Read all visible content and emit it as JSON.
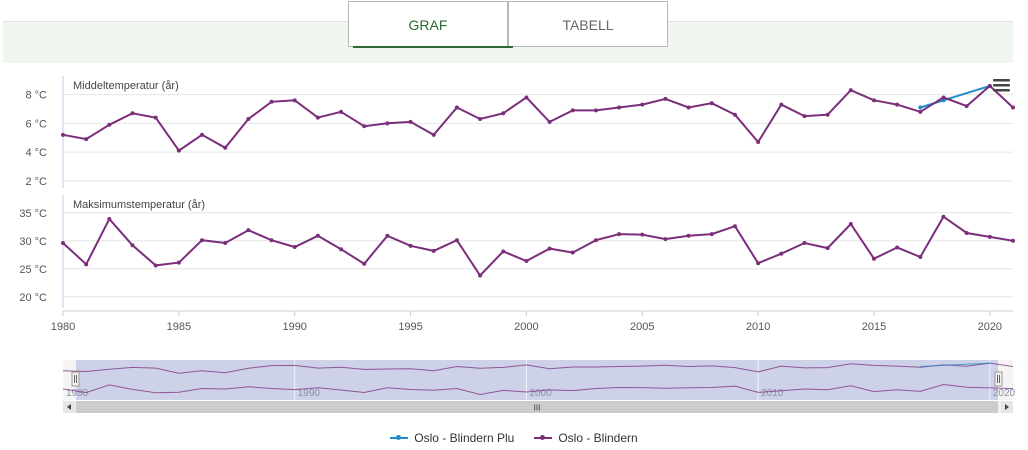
{
  "tabs": {
    "graf": "GRAF",
    "tabell": "TABELL"
  },
  "colors": {
    "blindern": "#7b2e7b",
    "plu": "#1f8dc9",
    "tab_active": "#2e6a33"
  },
  "menu_icon": "hamburger-menu-icon",
  "chart_data": [
    {
      "type": "line",
      "title": "Middeltemperatur (år)",
      "unit": "°C",
      "ylim": [
        1.5,
        9.5
      ],
      "yticks": [
        2,
        4,
        6,
        8
      ],
      "ytick_labels": [
        "2 °C",
        "4 °C",
        "6 °C",
        "8 °C"
      ],
      "series": [
        {
          "name": "Oslo - Blindern",
          "x": [
            1980,
            1981,
            1982,
            1983,
            1984,
            1985,
            1986,
            1987,
            1988,
            1989,
            1990,
            1991,
            1992,
            1993,
            1994,
            1995,
            1996,
            1997,
            1998,
            1999,
            2000,
            2001,
            2002,
            2003,
            2004,
            2005,
            2006,
            2007,
            2008,
            2009,
            2010,
            2011,
            2012,
            2013,
            2014,
            2015,
            2016,
            2017,
            2018,
            2019,
            2020,
            2021
          ],
          "values": [
            5.2,
            4.9,
            5.9,
            6.7,
            6.4,
            4.1,
            5.2,
            4.3,
            6.3,
            7.5,
            7.6,
            6.4,
            6.8,
            5.8,
            6.0,
            6.1,
            5.2,
            7.1,
            6.3,
            6.7,
            7.8,
            6.1,
            6.9,
            6.9,
            7.1,
            7.3,
            7.7,
            7.1,
            7.4,
            6.6,
            4.7,
            7.3,
            6.5,
            6.6,
            8.3,
            7.6,
            7.3,
            6.8,
            7.8,
            7.2,
            8.6,
            7.1
          ]
        },
        {
          "name": "Oslo - Blindern Plu",
          "x": [
            2017,
            2018,
            2020
          ],
          "values": [
            7.1,
            7.6,
            8.6
          ]
        }
      ]
    },
    {
      "type": "line",
      "title": "Maksimumstemperatur (år)",
      "unit": "°C",
      "ylim": [
        18,
        38
      ],
      "yticks": [
        20,
        25,
        30,
        35
      ],
      "ytick_labels": [
        "20 °C",
        "25 °C",
        "30 °C",
        "35 °C"
      ],
      "series": [
        {
          "name": "Oslo - Blindern",
          "x": [
            1980,
            1981,
            1982,
            1983,
            1984,
            1985,
            1986,
            1987,
            1988,
            1989,
            1990,
            1991,
            1992,
            1993,
            1994,
            1995,
            1996,
            1997,
            1998,
            1999,
            2000,
            2001,
            2002,
            2003,
            2004,
            2005,
            2006,
            2007,
            2008,
            2009,
            2010,
            2011,
            2012,
            2013,
            2014,
            2015,
            2016,
            2017,
            2018,
            2019,
            2020,
            2021
          ],
          "values": [
            29.6,
            25.8,
            33.9,
            29.2,
            25.6,
            26.1,
            30.1,
            29.6,
            31.9,
            30.1,
            28.9,
            30.9,
            28.5,
            25.9,
            30.9,
            29.1,
            28.2,
            30.1,
            23.8,
            28.1,
            26.4,
            28.6,
            27.9,
            30.1,
            31.2,
            31.1,
            30.3,
            30.9,
            31.2,
            32.6,
            26.0,
            27.7,
            29.6,
            28.7,
            33.0,
            26.8,
            28.8,
            27.1,
            34.3,
            31.4,
            30.7,
            30.0
          ]
        }
      ]
    }
  ],
  "x_axis": {
    "min": 1980,
    "max": 2021,
    "ticks": [
      1980,
      1985,
      1990,
      1995,
      2000,
      2005,
      2010,
      2015,
      2020
    ],
    "tick_labels": [
      "1980",
      "1985",
      "1990",
      "1995",
      "2000",
      "2005",
      "2010",
      "2015",
      "2020"
    ]
  },
  "navigator": {
    "tick_labels": [
      "1980",
      "1990",
      "2000",
      "2010",
      "2020"
    ],
    "ticks": [
      1980,
      1990,
      2000,
      2010,
      2020
    ],
    "scrollbar_grip": "III"
  },
  "legend": [
    {
      "label": "Oslo - Blindern Plu",
      "color": "#1f8dc9"
    },
    {
      "label": "Oslo - Blindern",
      "color": "#7b2e7b"
    }
  ]
}
